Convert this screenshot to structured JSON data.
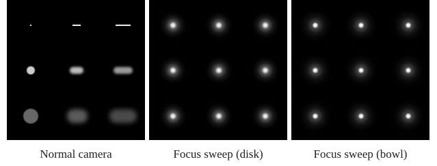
{
  "panels": [
    {
      "caption": "Normal camera"
    },
    {
      "caption": "Focus sweep (disk)"
    },
    {
      "caption": "Focus sweep (bowl)"
    }
  ]
}
